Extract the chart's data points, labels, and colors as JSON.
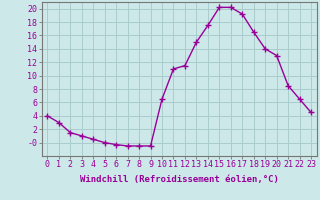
{
  "x": [
    0,
    1,
    2,
    3,
    4,
    5,
    6,
    7,
    8,
    9,
    10,
    11,
    12,
    13,
    14,
    15,
    16,
    17,
    18,
    19,
    20,
    21,
    22,
    23
  ],
  "y": [
    4,
    3,
    1.5,
    1,
    0.5,
    0,
    -0.3,
    -0.5,
    -0.5,
    -0.5,
    6.5,
    11,
    11.5,
    15,
    17.5,
    20.2,
    20.2,
    19.2,
    16.5,
    14,
    13,
    8.5,
    6.5,
    4.5
  ],
  "line_color": "#990099",
  "marker_color": "#990099",
  "bg_color": "#cce8e8",
  "grid_color": "#aacccc",
  "xlabel": "Windchill (Refroidissement éolien,°C)",
  "ylim": [
    -2,
    21
  ],
  "xlim": [
    -0.5,
    23.5
  ],
  "yticks": [
    0,
    2,
    4,
    6,
    8,
    10,
    12,
    14,
    16,
    18,
    20
  ],
  "ytick_labels": [
    "-0",
    "2",
    "4",
    "6",
    "8",
    "10",
    "12",
    "14",
    "16",
    "18",
    "20"
  ],
  "xticks": [
    0,
    1,
    2,
    3,
    4,
    5,
    6,
    7,
    8,
    9,
    10,
    11,
    12,
    13,
    14,
    15,
    16,
    17,
    18,
    19,
    20,
    21,
    22,
    23
  ],
  "text_color": "#990099",
  "label_fontsize": 6.5,
  "tick_fontsize": 6.0
}
